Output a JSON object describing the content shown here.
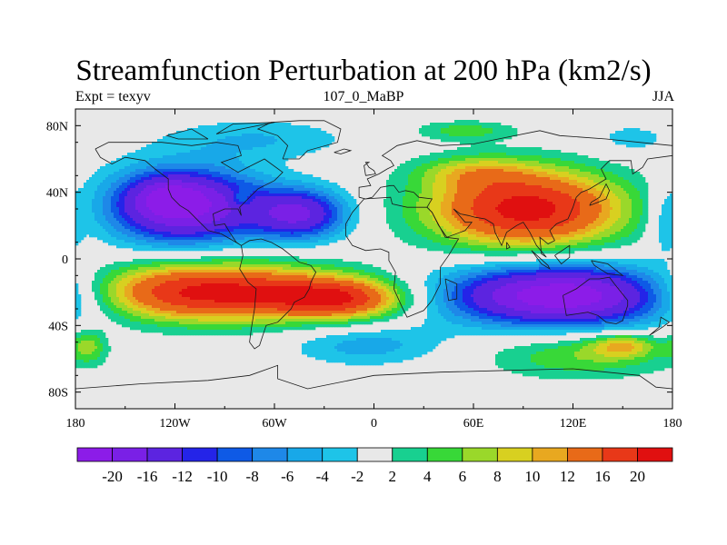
{
  "header": {
    "title": "Streamfunction Perturbation at 200 hPa (km2/s)",
    "left": "Expt = texyv",
    "center": "107_0_MaBP",
    "right": "JJA"
  },
  "chart_data": {
    "type": "heatmap",
    "title": "Streamfunction Perturbation at 200 hPa (km2/s)",
    "xlim": [
      -180,
      180
    ],
    "ylim": [
      -90,
      90
    ],
    "x_ticks": [
      {
        "value": -180,
        "label": "180"
      },
      {
        "value": -120,
        "label": "120W"
      },
      {
        "value": -60,
        "label": "60W"
      },
      {
        "value": 0,
        "label": "0"
      },
      {
        "value": 60,
        "label": "60E"
      },
      {
        "value": 120,
        "label": "120E"
      },
      {
        "value": 180,
        "label": "180"
      }
    ],
    "y_ticks": [
      {
        "value": 80,
        "label": "80N"
      },
      {
        "value": 40,
        "label": "40N"
      },
      {
        "value": 0,
        "label": "0"
      },
      {
        "value": -40,
        "label": "40S"
      },
      {
        "value": -80,
        "label": "80S"
      }
    ],
    "colorbar": {
      "levels": [
        "-20",
        "-16",
        "-12",
        "-10",
        "-8",
        "-6",
        "-4",
        "-2",
        "2",
        "4",
        "6",
        "8",
        "10",
        "12",
        "16",
        "20"
      ],
      "colors": [
        "#8c1ce8",
        "#7a20e6",
        "#5c24e0",
        "#2424e8",
        "#0e5ae6",
        "#1e88e8",
        "#18a8e8",
        "#1ec4e8",
        "#e8e8e8",
        "#18d090",
        "#38d838",
        "#9ad82a",
        "#d8d020",
        "#e8a820",
        "#e86a18",
        "#e83818",
        "#e01010"
      ]
    },
    "anomalies": [
      {
        "lon": -115,
        "lat": 32,
        "rx": 45,
        "ry": 22,
        "value": -22
      },
      {
        "lon": -125,
        "lat": 37,
        "rx": 18,
        "ry": 10,
        "value": -6
      },
      {
        "lon": -45,
        "lat": 27,
        "rx": 28,
        "ry": 15,
        "value": -16
      },
      {
        "lon": -70,
        "lat": 72,
        "rx": 55,
        "ry": 12,
        "value": -4
      },
      {
        "lon": 155,
        "lat": 72,
        "rx": 25,
        "ry": 10,
        "value": -3
      },
      {
        "lon": 175,
        "lat": 22,
        "rx": 10,
        "ry": 20,
        "value": -4
      },
      {
        "lon": -80,
        "lat": 36,
        "rx": 6,
        "ry": 5,
        "value": 5
      },
      {
        "lon": 92,
        "lat": 30,
        "rx": 58,
        "ry": 23,
        "value": 22
      },
      {
        "lon": 60,
        "lat": 52,
        "rx": 35,
        "ry": 10,
        "value": 6
      },
      {
        "lon": 55,
        "lat": 77,
        "rx": 30,
        "ry": 6,
        "value": 5
      },
      {
        "lon": -100,
        "lat": -20,
        "rx": 75,
        "ry": 17,
        "value": 22
      },
      {
        "lon": -20,
        "lat": -24,
        "rx": 40,
        "ry": 12,
        "value": 16
      },
      {
        "lon": 115,
        "lat": -22,
        "rx": 70,
        "ry": 18,
        "value": -24
      },
      {
        "lon": -5,
        "lat": -52,
        "rx": 45,
        "ry": 12,
        "value": -5
      },
      {
        "lon": 125,
        "lat": -58,
        "rx": 55,
        "ry": 14,
        "value": 6
      },
      {
        "lon": 150,
        "lat": -52,
        "rx": 20,
        "ry": 7,
        "value": 8
      },
      {
        "lon": -172,
        "lat": -52,
        "rx": 10,
        "ry": 10,
        "value": 6
      }
    ],
    "coastlines": [
      [
        [
          -168,
          66
        ],
        [
          -160,
          70
        ],
        [
          -145,
          70
        ],
        [
          -128,
          70
        ],
        [
          -110,
          68
        ],
        [
          -95,
          70
        ],
        [
          -82,
          68
        ],
        [
          -80,
          62
        ],
        [
          -92,
          58
        ],
        [
          -82,
          52
        ],
        [
          -78,
          54
        ],
        [
          -66,
          60
        ],
        [
          -55,
          52
        ],
        [
          -60,
          47
        ],
        [
          -66,
          44
        ],
        [
          -70,
          42
        ],
        [
          -76,
          36
        ],
        [
          -81,
          31
        ],
        [
          -80,
          26
        ],
        [
          -82,
          30
        ],
        [
          -90,
          30
        ],
        [
          -97,
          27
        ],
        [
          -96,
          20
        ],
        [
          -90,
          21
        ],
        [
          -87,
          16
        ],
        [
          -83,
          10
        ],
        [
          -80,
          8
        ],
        [
          -85,
          11
        ],
        [
          -92,
          15
        ],
        [
          -100,
          17
        ],
        [
          -106,
          23
        ],
        [
          -112,
          29
        ],
        [
          -117,
          32
        ],
        [
          -122,
          37
        ],
        [
          -124,
          42
        ],
        [
          -124,
          48
        ],
        [
          -132,
          54
        ],
        [
          -138,
          59
        ],
        [
          -150,
          61
        ],
        [
          -158,
          57
        ],
        [
          -165,
          61
        ],
        [
          -168,
          66
        ]
      ],
      [
        [
          -80,
          8
        ],
        [
          -75,
          11
        ],
        [
          -68,
          12
        ],
        [
          -62,
          10
        ],
        [
          -55,
          6
        ],
        [
          -50,
          2
        ],
        [
          -45,
          -2
        ],
        [
          -38,
          -4
        ],
        [
          -35,
          -8
        ],
        [
          -38,
          -14
        ],
        [
          -39,
          -18
        ],
        [
          -42,
          -23
        ],
        [
          -48,
          -26
        ],
        [
          -50,
          -30
        ],
        [
          -55,
          -35
        ],
        [
          -58,
          -38
        ],
        [
          -65,
          -40
        ],
        [
          -67,
          -46
        ],
        [
          -69,
          -52
        ],
        [
          -72,
          -54
        ],
        [
          -75,
          -50
        ],
        [
          -74,
          -42
        ],
        [
          -72,
          -30
        ],
        [
          -71,
          -18
        ],
        [
          -76,
          -14
        ],
        [
          -81,
          -6
        ],
        [
          -80,
          -2
        ],
        [
          -79,
          2
        ],
        [
          -80,
          8
        ]
      ],
      [
        [
          -55,
          60
        ],
        [
          -45,
          60
        ],
        [
          -40,
          65
        ],
        [
          -22,
          70
        ],
        [
          -20,
          78
        ],
        [
          -30,
          83
        ],
        [
          -45,
          83
        ],
        [
          -62,
          82
        ],
        [
          -70,
          78
        ],
        [
          -58,
          74
        ],
        [
          -52,
          68
        ],
        [
          -55,
          60
        ]
      ],
      [
        [
          -6,
          36
        ],
        [
          10,
          37
        ],
        [
          11,
          33
        ],
        [
          20,
          31
        ],
        [
          32,
          31
        ],
        [
          35,
          28
        ],
        [
          43,
          13
        ],
        [
          51,
          12
        ],
        [
          45,
          2
        ],
        [
          40,
          -5
        ],
        [
          40,
          -15
        ],
        [
          35,
          -25
        ],
        [
          30,
          -31
        ],
        [
          20,
          -35
        ],
        [
          17,
          -29
        ],
        [
          12,
          -18
        ],
        [
          13,
          -8
        ],
        [
          9,
          -1
        ],
        [
          9,
          4
        ],
        [
          4,
          6
        ],
        [
          -5,
          5
        ],
        [
          -13,
          8
        ],
        [
          -17,
          14
        ],
        [
          -17,
          21
        ],
        [
          -13,
          28
        ],
        [
          -6,
          36
        ]
      ],
      [
        [
          -9,
          37
        ],
        [
          -9,
          43
        ],
        [
          -2,
          44
        ],
        [
          -4,
          48
        ],
        [
          3,
          51
        ],
        [
          8,
          54
        ],
        [
          12,
          56
        ],
        [
          10,
          59
        ],
        [
          5,
          62
        ],
        [
          14,
          68
        ],
        [
          26,
          71
        ],
        [
          40,
          68
        ],
        [
          60,
          69
        ],
        [
          75,
          72
        ],
        [
          100,
          77
        ],
        [
          112,
          74
        ],
        [
          140,
          72
        ],
        [
          160,
          70
        ],
        [
          180,
          68
        ],
        [
          180,
          62
        ],
        [
          165,
          60
        ],
        [
          162,
          55
        ],
        [
          156,
          51
        ],
        [
          155,
          59
        ],
        [
          142,
          59
        ],
        [
          137,
          54
        ],
        [
          140,
          48
        ],
        [
          130,
          42
        ],
        [
          125,
          40
        ],
        [
          122,
          37
        ],
        [
          120,
          31
        ],
        [
          117,
          24
        ],
        [
          110,
          21
        ],
        [
          106,
          17
        ],
        [
          109,
          11
        ],
        [
          105,
          9
        ],
        [
          100,
          13
        ],
        [
          101,
          3
        ],
        [
          104,
          1
        ],
        [
          98,
          8
        ],
        [
          94,
          16
        ],
        [
          90,
          22
        ],
        [
          86,
          20
        ],
        [
          80,
          16
        ],
        [
          77,
          8
        ],
        [
          73,
          16
        ],
        [
          72,
          21
        ],
        [
          67,
          24
        ],
        [
          61,
          25
        ],
        [
          57,
          26
        ],
        [
          52,
          27
        ],
        [
          48,
          30
        ],
        [
          55,
          22
        ],
        [
          59,
          22
        ],
        [
          55,
          17
        ],
        [
          44,
          13
        ],
        [
          39,
          20
        ],
        [
          35,
          28
        ],
        [
          32,
          31
        ],
        [
          35,
          36
        ],
        [
          27,
          37
        ],
        [
          24,
          40
        ],
        [
          19,
          41
        ],
        [
          15,
          40
        ],
        [
          12,
          44
        ],
        [
          10,
          44
        ],
        [
          4,
          43
        ],
        [
          -1,
          37
        ],
        [
          -5,
          36
        ],
        [
          -9,
          37
        ]
      ],
      [
        [
          114,
          -22
        ],
        [
          116,
          -34
        ],
        [
          129,
          -32
        ],
        [
          135,
          -34
        ],
        [
          140,
          -38
        ],
        [
          146,
          -39
        ],
        [
          150,
          -37
        ],
        [
          153,
          -28
        ],
        [
          153,
          -25
        ],
        [
          145,
          -15
        ],
        [
          142,
          -11
        ],
        [
          136,
          -12
        ],
        [
          130,
          -12
        ],
        [
          122,
          -18
        ],
        [
          114,
          -22
        ]
      ],
      [
        [
          -180,
          -78
        ],
        [
          -140,
          -75
        ],
        [
          -100,
          -73
        ],
        [
          -75,
          -70
        ],
        [
          -58,
          -64
        ],
        [
          -58,
          -72
        ],
        [
          -40,
          -78
        ],
        [
          0,
          -70
        ],
        [
          40,
          -68
        ],
        [
          80,
          -67
        ],
        [
          120,
          -66
        ],
        [
          160,
          -70
        ],
        [
          170,
          -77
        ],
        [
          180,
          -78
        ]
      ],
      [
        [
          43,
          -12
        ],
        [
          50,
          -15
        ],
        [
          50,
          -24
        ],
        [
          45,
          -25
        ],
        [
          43,
          -12
        ]
      ],
      [
        [
          -5,
          50
        ],
        [
          1,
          51
        ],
        [
          0,
          53
        ],
        [
          -3,
          55
        ],
        [
          -5,
          58
        ],
        [
          -3,
          58
        ],
        [
          -6,
          56
        ],
        [
          -5,
          50
        ]
      ],
      [
        [
          -24,
          64
        ],
        [
          -18,
          66
        ],
        [
          -14,
          65
        ],
        [
          -20,
          63
        ],
        [
          -24,
          64
        ]
      ],
      [
        [
          130,
          32
        ],
        [
          135,
          34
        ],
        [
          140,
          36
        ],
        [
          142,
          41
        ],
        [
          140,
          45
        ],
        [
          136,
          37
        ],
        [
          131,
          34
        ],
        [
          130,
          32
        ]
      ],
      [
        [
          95,
          5
        ],
        [
          105,
          -4
        ],
        [
          106,
          -6
        ],
        [
          101,
          -3
        ],
        [
          95,
          5
        ]
      ],
      [
        [
          131,
          -1
        ],
        [
          141,
          -3
        ],
        [
          150,
          -10
        ],
        [
          141,
          -9
        ],
        [
          133,
          -4
        ],
        [
          131,
          -1
        ]
      ],
      [
        [
          109,
          2
        ],
        [
          118,
          8
        ],
        [
          118,
          1
        ],
        [
          113,
          -3
        ],
        [
          109,
          2
        ]
      ],
      [
        [
          80,
          10
        ],
        [
          82,
          7
        ],
        [
          80,
          6
        ],
        [
          80,
          10
        ]
      ],
      [
        [
          166,
          -46
        ],
        [
          174,
          -41
        ],
        [
          178,
          -38
        ],
        [
          173,
          -35
        ],
        [
          172,
          -41
        ],
        [
          166,
          -46
        ]
      ],
      [
        [
          -80,
          78
        ],
        [
          -60,
          82
        ],
        [
          -85,
          81
        ],
        [
          -95,
          75
        ],
        [
          -80,
          78
        ]
      ],
      [
        [
          -100,
          72
        ],
        [
          -118,
          72
        ],
        [
          -125,
          74
        ],
        [
          -110,
          78
        ],
        [
          -100,
          72
        ]
      ]
    ]
  }
}
